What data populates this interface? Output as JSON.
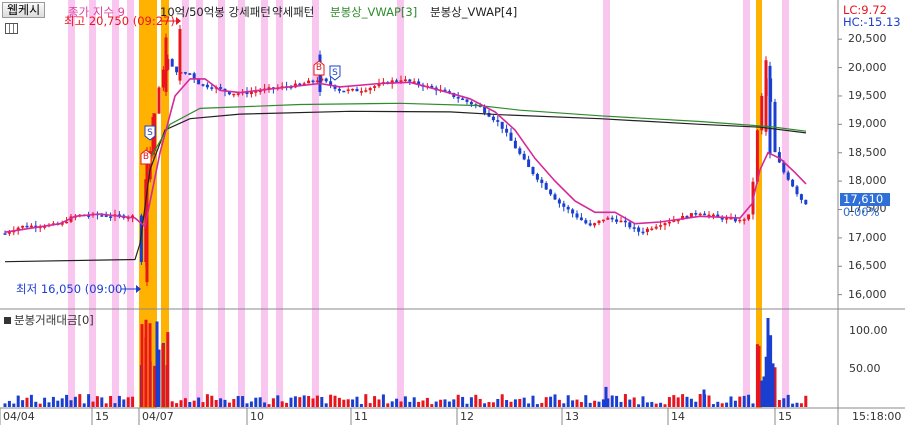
{
  "toolbar": {
    "title_button": "웹케시"
  },
  "legend": [
    {
      "label": "종가 지수 9",
      "color": "#e040a0"
    },
    {
      "label": "10억/50억봉 강세패턴",
      "color": "#222222"
    },
    {
      "label": "약세패턴",
      "color": "#222222"
    },
    {
      "label": "분봉상_VWAP[3]",
      "color": "#2e8b2e"
    },
    {
      "label": "분봉상_VWAP[4]",
      "color": "#222222"
    }
  ],
  "right_info": {
    "lc": "LC:9.72",
    "hc": "HC:-15.13",
    "current_price": "17,610",
    "current_change": "0.00%"
  },
  "annotations": {
    "high": "최고 20,750 (09:27)",
    "low": "최저 16,050 (09:00)"
  },
  "signals": [
    {
      "label": "S"
    },
    {
      "label": "B"
    },
    {
      "label": "B"
    },
    {
      "label": "S"
    }
  ],
  "price_axis": [
    "20,500",
    "20,000",
    "19,500",
    "19,000",
    "18,500",
    "18,000",
    "17,500",
    "17,000",
    "16,500",
    "16,000"
  ],
  "volume_panel": {
    "title": "분봉거래대금[0]",
    "axis": [
      "100.00",
      "50.00"
    ]
  },
  "time_axis": [
    "04/04",
    "15",
    "04/07",
    "10",
    "11",
    "12",
    "13",
    "14",
    "15",
    "15:18:00"
  ],
  "colors": {
    "up": "#e8141e",
    "down": "#1a3fd0",
    "ma": "#d6289a",
    "vwap3": "#2e8b2e",
    "vwap4": "#222222",
    "highlight_pink": "#f9c6ef",
    "highlight_orange": "#ffb300",
    "current_box": "#2f6fd8"
  },
  "chart_data": {
    "type": "candlestick",
    "price_axis_range": [
      15800,
      20750
    ],
    "high": {
      "price": 20750,
      "time": "09:27"
    },
    "low": {
      "price": 16050,
      "time": "09:00"
    },
    "last_price": 17610,
    "volume_axis_range": [
      0,
      110
    ]
  }
}
